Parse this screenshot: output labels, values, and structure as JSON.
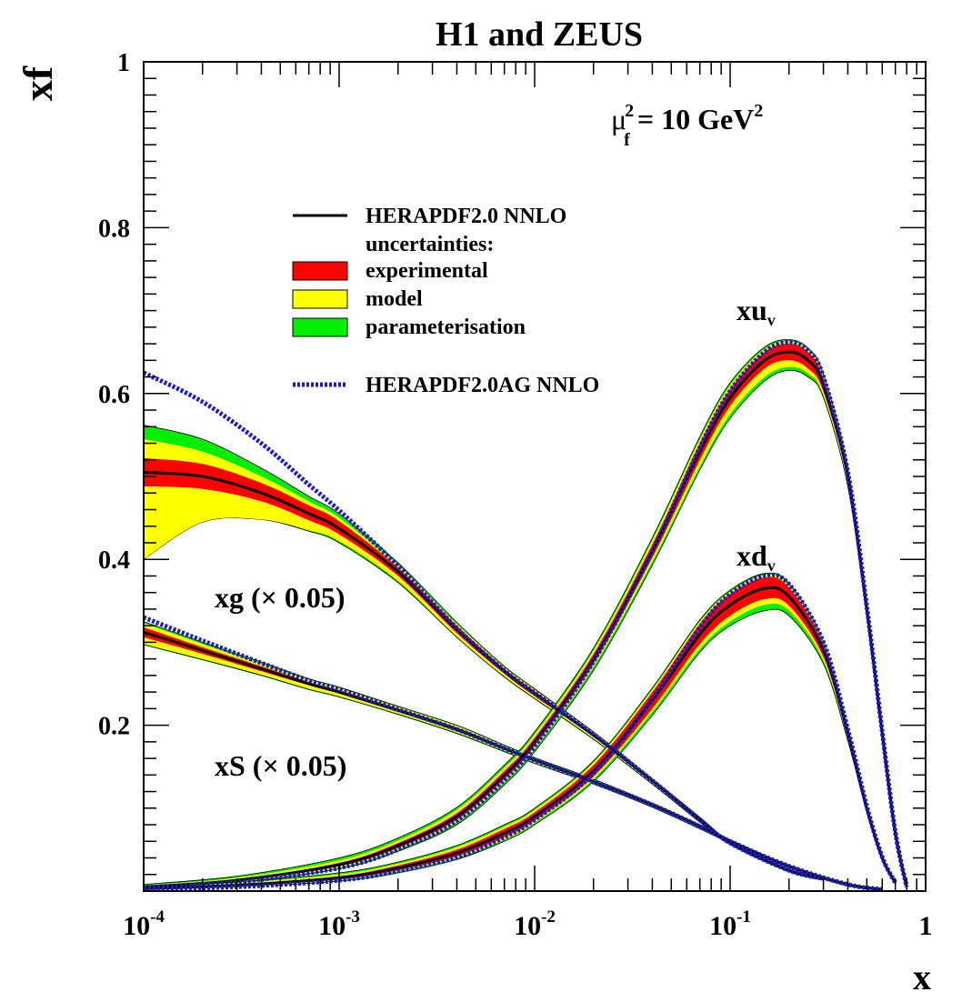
{
  "chart_data": {
    "type": "line",
    "title": "H1 and ZEUS",
    "xlabel": "x",
    "ylabel": "xf",
    "xscale": "log",
    "xlim": [
      0.0001,
      1
    ],
    "ylim": [
      0,
      1
    ],
    "annotation": {
      "base": "μ",
      "sub": "f",
      "sup": "2",
      "rest": " = 10 GeV",
      "rest_sup": "2"
    },
    "x_ticks": [
      {
        "value": 0.0001,
        "base": "10",
        "exp": "-4"
      },
      {
        "value": 0.001,
        "base": "10",
        "exp": "-3"
      },
      {
        "value": 0.01,
        "base": "10",
        "exp": "-2"
      },
      {
        "value": 0.1,
        "base": "10",
        "exp": "-1"
      },
      {
        "value": 1,
        "base": "1",
        "exp": ""
      }
    ],
    "y_ticks": [
      {
        "value": 0.2,
        "label": "0.2"
      },
      {
        "value": 0.4,
        "label": "0.4"
      },
      {
        "value": 0.6,
        "label": "0.6"
      },
      {
        "value": 0.8,
        "label": "0.8"
      },
      {
        "value": 1.0,
        "label": "1"
      }
    ],
    "legend": {
      "position": "upper-left",
      "entries": [
        {
          "label": "HERAPDF2.0 NNLO",
          "style": "line",
          "color": "#000000"
        },
        {
          "label": "uncertainties:",
          "style": "none"
        },
        {
          "label": "experimental",
          "style": "box",
          "color": "#ff0000"
        },
        {
          "label": "model",
          "style": "box",
          "color": "#ffff00"
        },
        {
          "label": "parameterisation",
          "style": "box",
          "color": "#00ee00"
        },
        {
          "label": "HERAPDF2.0AG NNLO",
          "style": "dotted",
          "color": "#1a1acc"
        }
      ]
    },
    "colors": {
      "central": "#000000",
      "exp": "#ff0000",
      "model": "#ffff00",
      "param": "#00ee00",
      "ag": "#1a1acc"
    },
    "series": [
      {
        "name": "xg (× 0.05)",
        "label": "xg (× 0.05)",
        "x": [
          0.0001,
          0.0002,
          0.0004,
          0.0007,
          0.001,
          0.002,
          0.004,
          0.007,
          0.01,
          0.02,
          0.04,
          0.07,
          0.1,
          0.2,
          0.3
        ],
        "central": [
          0.505,
          0.5,
          0.48,
          0.455,
          0.437,
          0.385,
          0.315,
          0.265,
          0.238,
          0.188,
          0.133,
          0.086,
          0.058,
          0.025,
          0.015
        ],
        "exp_lo": [
          0.488,
          0.485,
          0.47,
          0.447,
          0.43,
          0.38,
          0.311,
          0.262,
          0.235,
          0.186,
          0.131,
          0.085,
          0.057,
          0.024,
          0.014
        ],
        "exp_hi": [
          0.522,
          0.515,
          0.492,
          0.465,
          0.446,
          0.39,
          0.32,
          0.268,
          0.241,
          0.19,
          0.135,
          0.088,
          0.059,
          0.026,
          0.016
        ],
        "mod_lo": [
          0.4,
          0.445,
          0.448,
          0.435,
          0.422,
          0.374,
          0.307,
          0.259,
          0.233,
          0.184,
          0.13,
          0.084,
          0.056,
          0.023,
          0.013
        ],
        "mod_hi": [
          0.545,
          0.53,
          0.5,
          0.47,
          0.45,
          0.393,
          0.322,
          0.27,
          0.243,
          0.191,
          0.136,
          0.088,
          0.059,
          0.026,
          0.016
        ],
        "par_lo": [
          0.4,
          0.445,
          0.448,
          0.434,
          0.42,
          0.372,
          0.306,
          0.258,
          0.232,
          0.183,
          0.129,
          0.083,
          0.056,
          0.023,
          0.013
        ],
        "par_hi": [
          0.562,
          0.545,
          0.51,
          0.476,
          0.455,
          0.396,
          0.324,
          0.271,
          0.244,
          0.192,
          0.136,
          0.089,
          0.06,
          0.026,
          0.016
        ],
        "ag": [
          0.625,
          0.59,
          0.54,
          0.49,
          0.459,
          0.392,
          0.317,
          0.266,
          0.239,
          0.189,
          0.133,
          0.086,
          0.058,
          0.025,
          0.015
        ]
      },
      {
        "name": "xS (× 0.05)",
        "label": "xS (× 0.05)",
        "x": [
          0.0001,
          0.0002,
          0.0004,
          0.0007,
          0.001,
          0.002,
          0.004,
          0.007,
          0.01,
          0.02,
          0.04,
          0.07,
          0.1,
          0.2,
          0.4,
          0.6
        ],
        "central": [
          0.312,
          0.29,
          0.268,
          0.25,
          0.24,
          0.218,
          0.195,
          0.172,
          0.158,
          0.132,
          0.104,
          0.078,
          0.06,
          0.03,
          0.008,
          0.002
        ],
        "exp_lo": [
          0.306,
          0.286,
          0.265,
          0.248,
          0.238,
          0.216,
          0.193,
          0.171,
          0.157,
          0.131,
          0.103,
          0.077,
          0.059,
          0.029,
          0.007,
          0.001
        ],
        "exp_hi": [
          0.318,
          0.294,
          0.271,
          0.252,
          0.242,
          0.22,
          0.197,
          0.173,
          0.159,
          0.133,
          0.105,
          0.079,
          0.061,
          0.031,
          0.009,
          0.003
        ],
        "mod_lo": [
          0.298,
          0.28,
          0.261,
          0.244,
          0.235,
          0.214,
          0.191,
          0.169,
          0.155,
          0.13,
          0.102,
          0.076,
          0.058,
          0.028,
          0.006,
          0.001
        ],
        "mod_hi": [
          0.323,
          0.298,
          0.274,
          0.255,
          0.245,
          0.222,
          0.199,
          0.175,
          0.16,
          0.134,
          0.106,
          0.08,
          0.062,
          0.031,
          0.009,
          0.003
        ],
        "par_lo": [
          0.297,
          0.279,
          0.26,
          0.243,
          0.234,
          0.213,
          0.19,
          0.168,
          0.154,
          0.129,
          0.101,
          0.075,
          0.058,
          0.028,
          0.006,
          0.001
        ],
        "par_hi": [
          0.325,
          0.3,
          0.276,
          0.256,
          0.246,
          0.223,
          0.2,
          0.176,
          0.161,
          0.135,
          0.106,
          0.08,
          0.062,
          0.031,
          0.009,
          0.003
        ],
        "ag": [
          0.33,
          0.302,
          0.275,
          0.254,
          0.243,
          0.219,
          0.195,
          0.172,
          0.158,
          0.132,
          0.104,
          0.078,
          0.06,
          0.03,
          0.008,
          0.002
        ]
      },
      {
        "name": "xu_v",
        "label": "xu",
        "label_sub": "v",
        "x": [
          0.0001,
          0.0003,
          0.001,
          0.002,
          0.004,
          0.007,
          0.01,
          0.02,
          0.04,
          0.07,
          0.1,
          0.15,
          0.2,
          0.25,
          0.3,
          0.4,
          0.5,
          0.6,
          0.7,
          0.8
        ],
        "central": [
          0.005,
          0.013,
          0.032,
          0.055,
          0.09,
          0.14,
          0.18,
          0.28,
          0.41,
          0.53,
          0.595,
          0.64,
          0.65,
          0.64,
          0.61,
          0.5,
          0.34,
          0.19,
          0.07,
          0.005
        ],
        "exp_lo": [
          0.004,
          0.012,
          0.03,
          0.052,
          0.086,
          0.135,
          0.175,
          0.274,
          0.402,
          0.52,
          0.585,
          0.63,
          0.64,
          0.63,
          0.602,
          0.494,
          0.336,
          0.187,
          0.068,
          0.004
        ],
        "exp_hi": [
          0.006,
          0.014,
          0.034,
          0.058,
          0.094,
          0.145,
          0.185,
          0.286,
          0.418,
          0.54,
          0.605,
          0.65,
          0.66,
          0.65,
          0.618,
          0.506,
          0.344,
          0.193,
          0.072,
          0.006
        ],
        "mod_lo": [
          0.003,
          0.011,
          0.028,
          0.05,
          0.083,
          0.131,
          0.171,
          0.27,
          0.397,
          0.512,
          0.575,
          0.62,
          0.632,
          0.624,
          0.598,
          0.49,
          0.333,
          0.185,
          0.067,
          0.004
        ],
        "mod_hi": [
          0.007,
          0.016,
          0.037,
          0.061,
          0.098,
          0.149,
          0.189,
          0.29,
          0.423,
          0.545,
          0.61,
          0.654,
          0.663,
          0.653,
          0.621,
          0.508,
          0.346,
          0.194,
          0.073,
          0.006
        ],
        "par_lo": [
          0.003,
          0.01,
          0.027,
          0.048,
          0.08,
          0.128,
          0.168,
          0.266,
          0.393,
          0.508,
          0.57,
          0.615,
          0.628,
          0.62,
          0.595,
          0.488,
          0.331,
          0.184,
          0.066,
          0.004
        ],
        "par_hi": [
          0.008,
          0.018,
          0.04,
          0.064,
          0.101,
          0.152,
          0.192,
          0.293,
          0.426,
          0.548,
          0.613,
          0.656,
          0.665,
          0.655,
          0.623,
          0.51,
          0.347,
          0.195,
          0.073,
          0.006
        ],
        "ag": [
          0.004,
          0.011,
          0.028,
          0.05,
          0.085,
          0.134,
          0.175,
          0.277,
          0.41,
          0.535,
          0.603,
          0.65,
          0.662,
          0.652,
          0.62,
          0.505,
          0.343,
          0.192,
          0.071,
          0.005
        ]
      },
      {
        "name": "xd_v",
        "label": "xd",
        "label_sub": "v",
        "x": [
          0.0001,
          0.0003,
          0.001,
          0.002,
          0.004,
          0.007,
          0.01,
          0.02,
          0.04,
          0.07,
          0.1,
          0.15,
          0.2,
          0.3,
          0.4,
          0.5,
          0.6,
          0.7
        ],
        "central": [
          0.003,
          0.007,
          0.016,
          0.028,
          0.046,
          0.07,
          0.09,
          0.145,
          0.23,
          0.31,
          0.345,
          0.365,
          0.355,
          0.29,
          0.19,
          0.1,
          0.04,
          0.01
        ],
        "exp_lo": [
          0.002,
          0.006,
          0.014,
          0.025,
          0.042,
          0.065,
          0.085,
          0.138,
          0.22,
          0.298,
          0.332,
          0.352,
          0.344,
          0.282,
          0.185,
          0.097,
          0.038,
          0.009
        ],
        "exp_hi": [
          0.004,
          0.008,
          0.018,
          0.031,
          0.05,
          0.075,
          0.095,
          0.152,
          0.24,
          0.322,
          0.358,
          0.378,
          0.366,
          0.298,
          0.195,
          0.103,
          0.042,
          0.011
        ],
        "mod_lo": [
          0.002,
          0.005,
          0.013,
          0.024,
          0.04,
          0.062,
          0.082,
          0.135,
          0.216,
          0.292,
          0.325,
          0.345,
          0.338,
          0.278,
          0.183,
          0.096,
          0.038,
          0.009
        ],
        "mod_hi": [
          0.005,
          0.01,
          0.02,
          0.033,
          0.053,
          0.078,
          0.098,
          0.155,
          0.243,
          0.325,
          0.361,
          0.381,
          0.369,
          0.3,
          0.196,
          0.104,
          0.042,
          0.011
        ],
        "par_lo": [
          0.002,
          0.005,
          0.012,
          0.022,
          0.038,
          0.06,
          0.08,
          0.132,
          0.212,
          0.288,
          0.32,
          0.338,
          0.332,
          0.274,
          0.181,
          0.095,
          0.037,
          0.009
        ],
        "par_hi": [
          0.006,
          0.011,
          0.022,
          0.035,
          0.055,
          0.08,
          0.1,
          0.157,
          0.245,
          0.327,
          0.363,
          0.383,
          0.371,
          0.301,
          0.197,
          0.104,
          0.042,
          0.011
        ],
        "ag": [
          0.002,
          0.005,
          0.013,
          0.024,
          0.041,
          0.065,
          0.086,
          0.142,
          0.232,
          0.318,
          0.358,
          0.38,
          0.37,
          0.3,
          0.195,
          0.102,
          0.041,
          0.01
        ]
      }
    ]
  }
}
